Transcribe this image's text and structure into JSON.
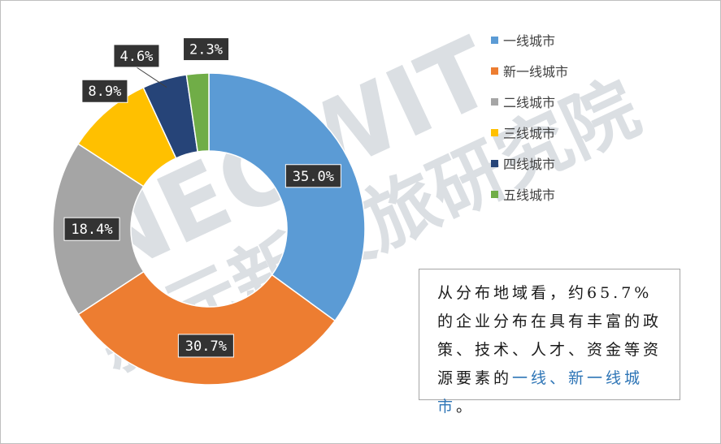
{
  "chart_data": {
    "type": "pie",
    "donut": true,
    "categories": [
      "一线城市",
      "新一线城市",
      "二线城市",
      "三线城市",
      "四线城市",
      "五线城市"
    ],
    "values": [
      35.0,
      30.7,
      18.4,
      8.9,
      4.6,
      2.3
    ],
    "value_labels": [
      "35.0%",
      "30.7%",
      "18.4%",
      "8.9%",
      "4.6%",
      "2.3%"
    ],
    "colors": [
      "#5b9bd5",
      "#ed7d31",
      "#a5a5a5",
      "#ffc000",
      "#264478",
      "#70ad47"
    ],
    "legend_position": "right"
  },
  "watermark": {
    "latin": "NEOWIT",
    "chinese": "新元新文旅研究院"
  },
  "note": {
    "text_before": "从分布地域看，约65.7%的企业分布在具有丰富的政策、技术、人才、资金等资源要素的",
    "text_highlight": "一线、新一线城市",
    "text_after": "。"
  }
}
